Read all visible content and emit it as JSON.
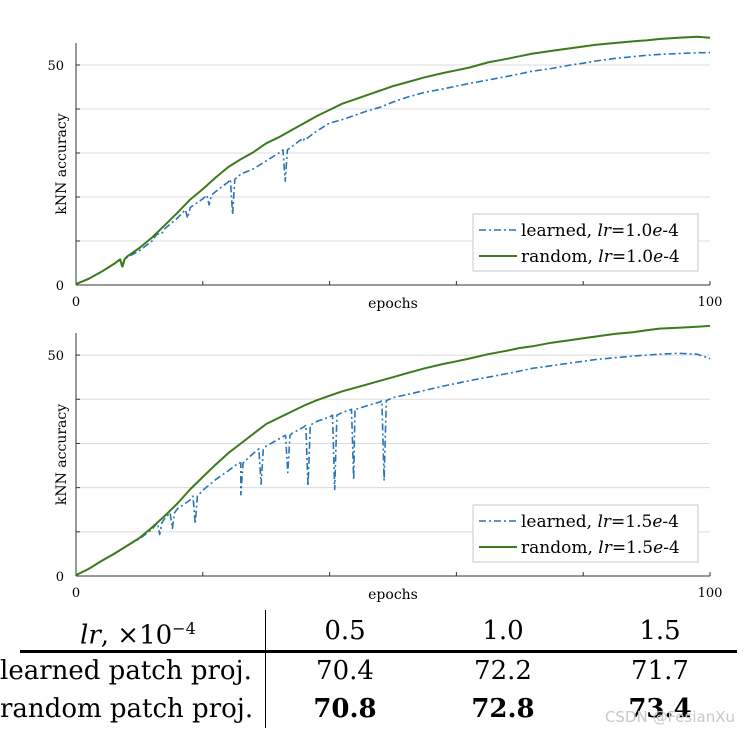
{
  "chart_data": [
    {
      "type": "line",
      "name": "top-plot",
      "xlabel": "epochs",
      "ylabel": "kNN accuracy",
      "xlim": [
        0,
        100
      ],
      "ylim": [
        0,
        55
      ],
      "xticks": [
        0,
        100
      ],
      "xticks_minor": [
        20,
        40,
        60,
        80
      ],
      "yticks": [
        0,
        50
      ],
      "yticks_minor": [
        10,
        20,
        30,
        40
      ],
      "grid": true,
      "legend_position": "bottom-right",
      "series": [
        {
          "name": "learned, lr=1.0e-4",
          "legend_prefix": "learned, ",
          "legend_lr": "lr",
          "legend_value": "=1.0",
          "legend_exp": "e",
          "legend_suffix": "-4",
          "color": "#2874b8",
          "style": "dashdot",
          "x": [
            0,
            2,
            4,
            6,
            8,
            10,
            12,
            14,
            16,
            18,
            20,
            22,
            24,
            26,
            28,
            30,
            32,
            34,
            36,
            38,
            40,
            42,
            44,
            46,
            48,
            50,
            52,
            55,
            58,
            60,
            62,
            65,
            68,
            70,
            72,
            75,
            78,
            80,
            82,
            85,
            88,
            90,
            92,
            95,
            98,
            100
          ],
          "values": [
            0.2,
            1.4,
            3,
            4.8,
            6.2,
            7.8,
            10,
            12.8,
            15.2,
            17.6,
            19.6,
            21.2,
            23.4,
            25.2,
            26.4,
            28.2,
            30,
            31.4,
            33.2,
            35,
            36.8,
            37.6,
            38.6,
            39.6,
            40.4,
            41.6,
            42.6,
            43.8,
            44.6,
            45.2,
            45.8,
            46.6,
            47.4,
            48,
            48.6,
            49.2,
            50,
            50.4,
            50.9,
            51.5,
            51.9,
            52.2,
            52.4,
            52.6,
            52.8,
            52.8
          ],
          "dips": [
            [
              7.3,
              3.8
            ],
            [
              13.1,
              11.6
            ],
            [
              17.6,
              15.2
            ],
            [
              21,
              18.2
            ],
            [
              24.7,
              16
            ],
            [
              33,
              23.6
            ],
            [
              35.8,
              32.6
            ]
          ]
        },
        {
          "name": "random, lr=1.0e-4",
          "legend_prefix": "random, ",
          "legend_lr": "lr",
          "legend_value": "=1.0",
          "legend_exp": "e",
          "legend_suffix": "-4",
          "color": "#3c7a1e",
          "style": "solid",
          "x": [
            0,
            2,
            4,
            6,
            8,
            10,
            12,
            14,
            16,
            18,
            20,
            22,
            24,
            26,
            28,
            30,
            32,
            34,
            36,
            38,
            40,
            42,
            44,
            46,
            48,
            50,
            52,
            55,
            58,
            60,
            62,
            65,
            68,
            70,
            72,
            75,
            78,
            80,
            82,
            85,
            88,
            90,
            92,
            95,
            98,
            100
          ],
          "values": [
            0.2,
            1.4,
            3,
            4.8,
            6.4,
            8.4,
            10.8,
            13.6,
            16.4,
            19.4,
            21.8,
            24.4,
            26.8,
            28.6,
            30.2,
            32.2,
            33.6,
            35.2,
            36.8,
            38.4,
            39.8,
            41.2,
            42.2,
            43.2,
            44.2,
            45.2,
            46,
            47.2,
            48.2,
            48.8,
            49.4,
            50.6,
            51.4,
            52,
            52.6,
            53.2,
            53.8,
            54.2,
            54.6,
            55,
            55.4,
            55.6,
            55.9,
            56.2,
            56.4,
            56.2
          ],
          "dips": [
            [
              7.3,
              4.2
            ]
          ]
        }
      ]
    },
    {
      "type": "line",
      "name": "bottom-plot",
      "xlabel": "epochs",
      "ylabel": "kNN accuracy",
      "xlim": [
        0,
        100
      ],
      "ylim": [
        0,
        55
      ],
      "xticks": [
        0,
        100
      ],
      "xticks_minor": [
        20,
        40,
        60,
        80
      ],
      "yticks": [
        0,
        50
      ],
      "yticks_minor": [
        10,
        20,
        30,
        40
      ],
      "grid": true,
      "legend_position": "bottom-right",
      "series": [
        {
          "name": "learned, lr=1.5e-4",
          "legend_prefix": "learned, ",
          "legend_lr": "lr",
          "legend_value": "=1.5",
          "legend_exp": "e",
          "legend_suffix": "-4",
          "color": "#2874b8",
          "style": "dashdot",
          "x": [
            0,
            2,
            4,
            6,
            8,
            10,
            12,
            14,
            16,
            18,
            20,
            22,
            24,
            26,
            28,
            30,
            32,
            34,
            36,
            38,
            40,
            42,
            44,
            46,
            48,
            50,
            52,
            55,
            58,
            60,
            62,
            65,
            68,
            70,
            72,
            75,
            78,
            80,
            82,
            85,
            88,
            90,
            92,
            95,
            98,
            100
          ],
          "values": [
            0.2,
            1.6,
            3.4,
            5,
            6.8,
            8.4,
            10.6,
            13,
            15.2,
            17.2,
            19.4,
            21.8,
            23.8,
            25.6,
            27.8,
            29.4,
            31,
            32.2,
            33.8,
            35,
            36,
            37,
            37.8,
            38.6,
            39.4,
            40.4,
            41,
            42,
            43,
            43.6,
            44.2,
            45,
            45.8,
            46.4,
            47,
            47.6,
            48.2,
            48.6,
            49,
            49.4,
            49.8,
            50,
            50.2,
            50.4,
            50.2,
            49.2
          ],
          "dips": [
            [
              13.2,
              9.4
            ],
            [
              15.2,
              10.8
            ],
            [
              18.8,
              11.8
            ],
            [
              26,
              18.4
            ],
            [
              29.2,
              20.8
            ],
            [
              33.4,
              23.4
            ],
            [
              36.6,
              20.4
            ],
            [
              40.8,
              19.6
            ],
            [
              43.8,
              21.8
            ],
            [
              48.6,
              21.6
            ]
          ]
        },
        {
          "name": "random, lr=1.5e-4",
          "legend_prefix": "random, ",
          "legend_lr": "lr",
          "legend_value": "=1.5",
          "legend_exp": "e",
          "legend_suffix": "-4",
          "color": "#3c7a1e",
          "style": "solid",
          "x": [
            0,
            2,
            4,
            6,
            8,
            10,
            12,
            14,
            16,
            18,
            20,
            22,
            24,
            26,
            28,
            30,
            32,
            34,
            36,
            38,
            40,
            42,
            44,
            46,
            48,
            50,
            52,
            55,
            58,
            60,
            62,
            65,
            68,
            70,
            72,
            75,
            78,
            80,
            82,
            85,
            88,
            90,
            92,
            95,
            98,
            100
          ],
          "values": [
            0.2,
            1.6,
            3.4,
            5,
            6.8,
            8.6,
            11,
            13.6,
            16.4,
            19.6,
            22.4,
            25.2,
            27.8,
            30,
            32.2,
            34.4,
            35.8,
            37.2,
            38.6,
            39.8,
            40.8,
            41.8,
            42.6,
            43.4,
            44.2,
            45,
            45.8,
            47,
            48,
            48.6,
            49.2,
            50.2,
            51,
            51.6,
            52,
            52.8,
            53.4,
            53.8,
            54.2,
            54.8,
            55.2,
            55.6,
            56,
            56.2,
            56.4,
            56.6
          ],
          "dips": []
        }
      ]
    }
  ],
  "table": {
    "header": {
      "lr": "lr",
      "sep": ", ×10",
      "exp": "−4",
      "cols": [
        "0.5",
        "1.0",
        "1.5"
      ]
    },
    "rows": [
      {
        "label": "learned patch proj.",
        "values": [
          "70.4",
          "72.2",
          "71.7"
        ],
        "bold": [
          false,
          false,
          false
        ]
      },
      {
        "label": "random patch proj.",
        "values": [
          "70.8",
          "72.8",
          "73.4"
        ],
        "bold": [
          true,
          true,
          true
        ]
      }
    ]
  },
  "watermark": "CSDN @FesianXu"
}
